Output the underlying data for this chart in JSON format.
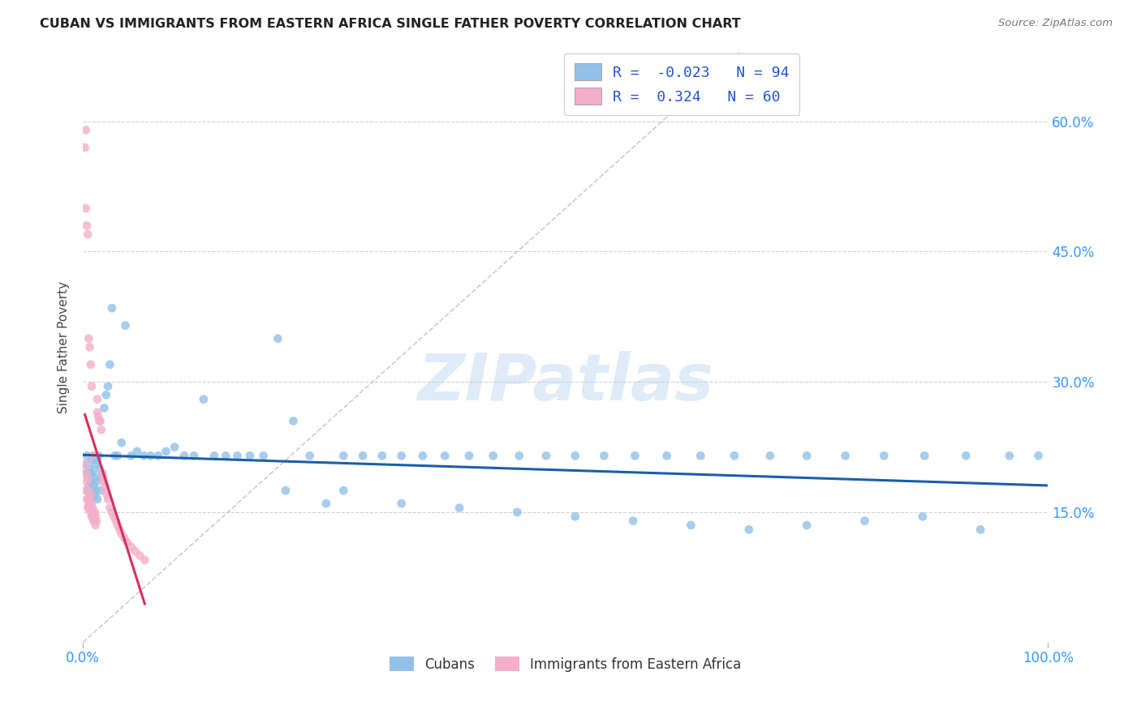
{
  "title": "CUBAN VS IMMIGRANTS FROM EASTERN AFRICA SINGLE FATHER POVERTY CORRELATION CHART",
  "source": "Source: ZipAtlas.com",
  "ylabel": "Single Father Poverty",
  "xlim": [
    0,
    1.0
  ],
  "ylim": [
    0,
    0.68
  ],
  "yticks": [
    0.15,
    0.3,
    0.45,
    0.6
  ],
  "ytick_labels": [
    "15.0%",
    "30.0%",
    "45.0%",
    "60.0%"
  ],
  "xtick_labels": [
    "0.0%",
    "100.0%"
  ],
  "xtick_vals": [
    0.0,
    1.0
  ],
  "r_cubans": -0.023,
  "n_cubans": 94,
  "r_eastern_africa": 0.324,
  "n_eastern_africa": 60,
  "legend_labels": [
    "Cubans",
    "Immigrants from Eastern Africa"
  ],
  "color_cubans": "#92c0e8",
  "color_eastern_africa": "#f4afc8",
  "trend_color_cubans": "#1a5fa8",
  "trend_color_eastern_africa": "#d43060",
  "diagonal_color": "#c0c0c0",
  "grid_color": "#d0d0d0",
  "background_color": "#ffffff",
  "watermark": "ZIPatlas",
  "cubans_x": [
    0.002,
    0.003,
    0.004,
    0.005,
    0.005,
    0.006,
    0.006,
    0.007,
    0.007,
    0.008,
    0.008,
    0.009,
    0.009,
    0.01,
    0.01,
    0.011,
    0.011,
    0.012,
    0.012,
    0.013,
    0.013,
    0.014,
    0.015,
    0.015,
    0.016,
    0.017,
    0.018,
    0.019,
    0.02,
    0.022,
    0.024,
    0.026,
    0.028,
    0.03,
    0.033,
    0.036,
    0.04,
    0.044,
    0.05,
    0.056,
    0.063,
    0.07,
    0.078,
    0.086,
    0.095,
    0.105,
    0.115,
    0.125,
    0.136,
    0.148,
    0.16,
    0.173,
    0.187,
    0.202,
    0.218,
    0.235,
    0.252,
    0.27,
    0.29,
    0.31,
    0.33,
    0.352,
    0.375,
    0.4,
    0.425,
    0.452,
    0.48,
    0.51,
    0.54,
    0.572,
    0.605,
    0.64,
    0.675,
    0.712,
    0.75,
    0.79,
    0.83,
    0.872,
    0.915,
    0.96,
    0.21,
    0.27,
    0.33,
    0.39,
    0.45,
    0.51,
    0.57,
    0.63,
    0.69,
    0.75,
    0.81,
    0.87,
    0.93,
    0.99
  ],
  "cubans_y": [
    0.205,
    0.195,
    0.215,
    0.19,
    0.175,
    0.18,
    0.165,
    0.17,
    0.2,
    0.195,
    0.185,
    0.175,
    0.21,
    0.165,
    0.195,
    0.18,
    0.215,
    0.17,
    0.19,
    0.175,
    0.205,
    0.185,
    0.21,
    0.165,
    0.215,
    0.2,
    0.175,
    0.19,
    0.195,
    0.27,
    0.285,
    0.295,
    0.32,
    0.385,
    0.215,
    0.215,
    0.23,
    0.365,
    0.215,
    0.22,
    0.215,
    0.215,
    0.215,
    0.22,
    0.225,
    0.215,
    0.215,
    0.28,
    0.215,
    0.215,
    0.215,
    0.215,
    0.215,
    0.35,
    0.255,
    0.215,
    0.16,
    0.215,
    0.215,
    0.215,
    0.215,
    0.215,
    0.215,
    0.215,
    0.215,
    0.215,
    0.215,
    0.215,
    0.215,
    0.215,
    0.215,
    0.215,
    0.215,
    0.215,
    0.215,
    0.215,
    0.215,
    0.215,
    0.215,
    0.215,
    0.175,
    0.175,
    0.16,
    0.155,
    0.15,
    0.145,
    0.14,
    0.135,
    0.13,
    0.135,
    0.14,
    0.145,
    0.13,
    0.215
  ],
  "eastern_africa_x": [
    0.002,
    0.003,
    0.003,
    0.004,
    0.004,
    0.005,
    0.005,
    0.006,
    0.006,
    0.007,
    0.007,
    0.008,
    0.008,
    0.009,
    0.009,
    0.01,
    0.01,
    0.011,
    0.011,
    0.012,
    0.012,
    0.013,
    0.013,
    0.014,
    0.015,
    0.015,
    0.016,
    0.017,
    0.018,
    0.019,
    0.02,
    0.021,
    0.022,
    0.023,
    0.024,
    0.025,
    0.026,
    0.028,
    0.03,
    0.032,
    0.034,
    0.036,
    0.038,
    0.04,
    0.043,
    0.046,
    0.05,
    0.054,
    0.059,
    0.064,
    0.002,
    0.003,
    0.003,
    0.004,
    0.005,
    0.006,
    0.007,
    0.008,
    0.009,
    0.01
  ],
  "eastern_africa_y": [
    0.205,
    0.195,
    0.175,
    0.185,
    0.165,
    0.19,
    0.155,
    0.175,
    0.16,
    0.165,
    0.155,
    0.17,
    0.15,
    0.16,
    0.145,
    0.155,
    0.145,
    0.15,
    0.14,
    0.15,
    0.14,
    0.145,
    0.135,
    0.14,
    0.28,
    0.265,
    0.26,
    0.255,
    0.255,
    0.245,
    0.195,
    0.19,
    0.185,
    0.18,
    0.175,
    0.17,
    0.165,
    0.155,
    0.15,
    0.145,
    0.14,
    0.135,
    0.13,
    0.125,
    0.12,
    0.115,
    0.11,
    0.105,
    0.1,
    0.095,
    0.57,
    0.59,
    0.5,
    0.48,
    0.47,
    0.35,
    0.34,
    0.32,
    0.295,
    0.215
  ]
}
